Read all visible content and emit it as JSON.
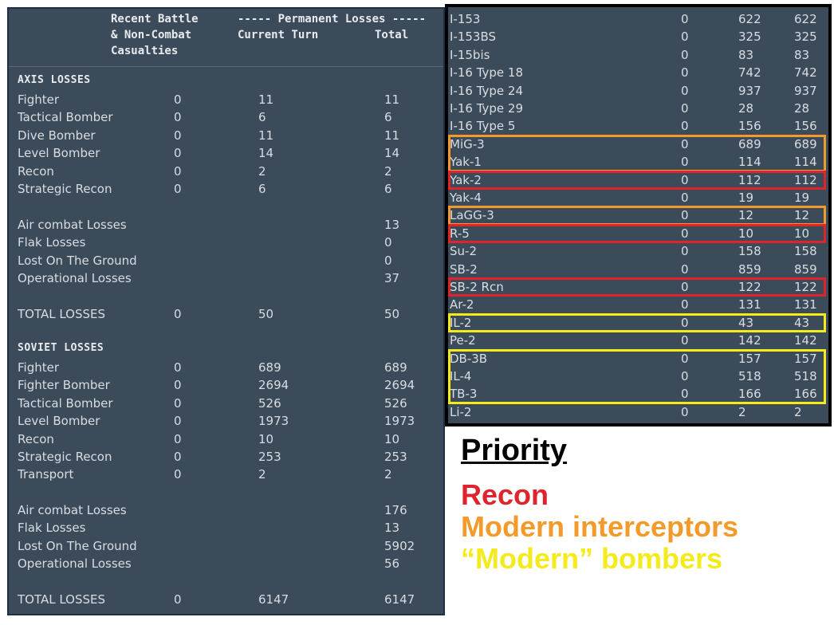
{
  "header": {
    "col1_line1": "Recent Battle",
    "col1_line2": "& Non-Combat",
    "col1_line3": "Casualties",
    "col2_line1": "----- Permanent Losses -----",
    "col2_line2": "Current Turn",
    "col3_line2": "Total"
  },
  "axis": {
    "title": "AXIS LOSSES",
    "types": [
      {
        "name": "Fighter",
        "recent": "0",
        "current": "11",
        "total": "11"
      },
      {
        "name": "Tactical Bomber",
        "recent": "0",
        "current": "6",
        "total": "6"
      },
      {
        "name": "Dive Bomber",
        "recent": "0",
        "current": "11",
        "total": "11"
      },
      {
        "name": "Level Bomber",
        "recent": "0",
        "current": "14",
        "total": "14"
      },
      {
        "name": "Recon",
        "recent": "0",
        "current": "2",
        "total": "2"
      },
      {
        "name": "Strategic Recon",
        "recent": "0",
        "current": "6",
        "total": "6"
      }
    ],
    "causes": [
      {
        "name": "Air combat Losses",
        "total": "13"
      },
      {
        "name": "Flak Losses",
        "total": "0"
      },
      {
        "name": "Lost On The Ground",
        "total": "0"
      },
      {
        "name": "Operational Losses",
        "total": "37"
      }
    ],
    "total": {
      "name": "TOTAL LOSSES",
      "recent": "0",
      "current": "50",
      "total": "50"
    }
  },
  "soviet": {
    "title": "SOVIET LOSSES",
    "types": [
      {
        "name": "Fighter",
        "recent": "0",
        "current": "689",
        "total": "689"
      },
      {
        "name": "Fighter Bomber",
        "recent": "0",
        "current": "2694",
        "total": "2694"
      },
      {
        "name": "Tactical Bomber",
        "recent": "0",
        "current": "526",
        "total": "526"
      },
      {
        "name": "Level Bomber",
        "recent": "0",
        "current": "1973",
        "total": "1973"
      },
      {
        "name": "Recon",
        "recent": "0",
        "current": "10",
        "total": "10"
      },
      {
        "name": "Strategic Recon",
        "recent": "0",
        "current": "253",
        "total": "253"
      },
      {
        "name": "Transport",
        "recent": "0",
        "current": "2",
        "total": "2"
      }
    ],
    "causes": [
      {
        "name": "Air combat Losses",
        "total": "176"
      },
      {
        "name": "Flak Losses",
        "total": "13"
      },
      {
        "name": "Lost On The Ground",
        "total": "5902"
      },
      {
        "name": "Operational Losses",
        "total": "56"
      }
    ],
    "total": {
      "name": "TOTAL LOSSES",
      "recent": "0",
      "current": "6147",
      "total": "6147"
    }
  },
  "aircraft": [
    {
      "name": "I-153",
      "recent": "0",
      "current": "622",
      "total": "622"
    },
    {
      "name": "I-153BS",
      "recent": "0",
      "current": "325",
      "total": "325"
    },
    {
      "name": "I-15bis",
      "recent": "0",
      "current": "83",
      "total": "83"
    },
    {
      "name": "I-16 Type 18",
      "recent": "0",
      "current": "742",
      "total": "742"
    },
    {
      "name": "I-16 Type 24",
      "recent": "0",
      "current": "937",
      "total": "937"
    },
    {
      "name": "I-16 Type 29",
      "recent": "0",
      "current": "28",
      "total": "28"
    },
    {
      "name": "I-16 Type 5",
      "recent": "0",
      "current": "156",
      "total": "156"
    },
    {
      "name": "MiG-3",
      "recent": "0",
      "current": "689",
      "total": "689"
    },
    {
      "name": "Yak-1",
      "recent": "0",
      "current": "114",
      "total": "114"
    },
    {
      "name": "Yak-2",
      "recent": "0",
      "current": "112",
      "total": "112"
    },
    {
      "name": "Yak-4",
      "recent": "0",
      "current": "19",
      "total": "19"
    },
    {
      "name": "LaGG-3",
      "recent": "0",
      "current": "12",
      "total": "12"
    },
    {
      "name": "R-5",
      "recent": "0",
      "current": "10",
      "total": "10"
    },
    {
      "name": "Su-2",
      "recent": "0",
      "current": "158",
      "total": "158"
    },
    {
      "name": "SB-2",
      "recent": "0",
      "current": "859",
      "total": "859"
    },
    {
      "name": "SB-2 Rcn",
      "recent": "0",
      "current": "122",
      "total": "122"
    },
    {
      "name": "Ar-2",
      "recent": "0",
      "current": "131",
      "total": "131"
    },
    {
      "name": "IL-2",
      "recent": "0",
      "current": "43",
      "total": "43"
    },
    {
      "name": "Pe-2",
      "recent": "0",
      "current": "142",
      "total": "142"
    },
    {
      "name": "DB-3B",
      "recent": "0",
      "current": "157",
      "total": "157"
    },
    {
      "name": "IL-4",
      "recent": "0",
      "current": "518",
      "total": "518"
    },
    {
      "name": "TB-3",
      "recent": "0",
      "current": "166",
      "total": "166"
    },
    {
      "name": "Li-2",
      "recent": "0",
      "current": "2",
      "total": "2"
    }
  ],
  "highlights": [
    {
      "from": 7,
      "to": 8,
      "color": "#f39a2a"
    },
    {
      "from": 9,
      "to": 9,
      "color": "#e0242e"
    },
    {
      "from": 11,
      "to": 11,
      "color": "#f39a2a"
    },
    {
      "from": 12,
      "to": 12,
      "color": "#e0242e"
    },
    {
      "from": 15,
      "to": 15,
      "color": "#e0242e"
    },
    {
      "from": 17,
      "to": 17,
      "color": "#f5ea1a"
    },
    {
      "from": 19,
      "to": 21,
      "color": "#f5ea1a"
    }
  ],
  "legend": {
    "title": "Priority",
    "items": [
      {
        "label": "Recon",
        "color": "#e0242e"
      },
      {
        "label": "Modern interceptors",
        "color": "#f39a2a"
      },
      {
        "label": "“Modern” bombers",
        "color": "#f5ea1a"
      }
    ]
  }
}
